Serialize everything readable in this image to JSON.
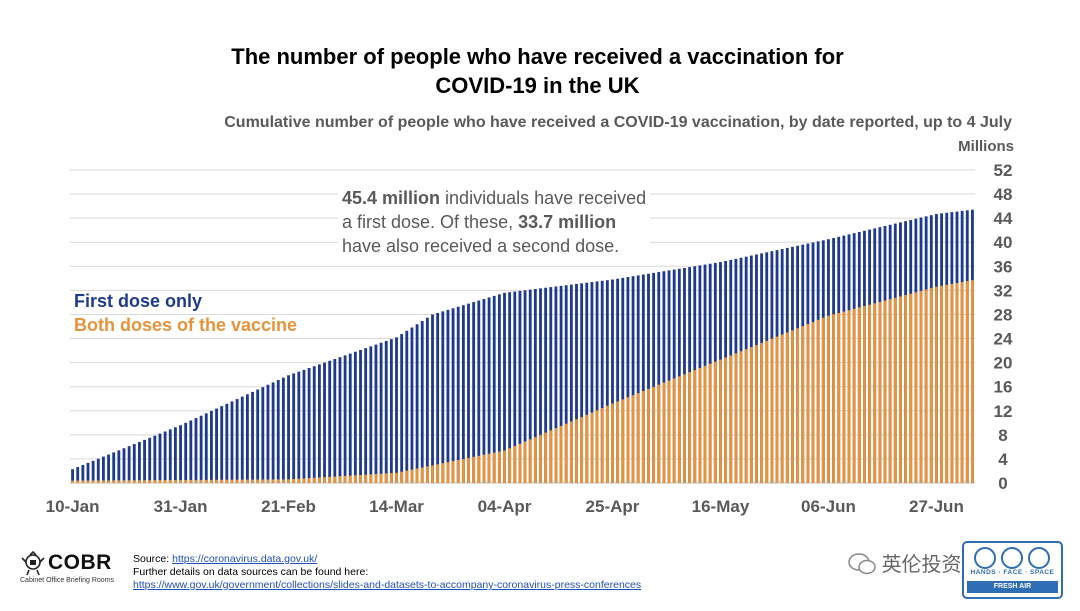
{
  "title_line1": "The number of people who have received a vaccination for",
  "title_line2": "COVID-19 in the UK",
  "subtitle": "Cumulative number of people who have received a COVID-19 vaccination, by date reported, up to 4 July",
  "units": "Millions",
  "annotation": {
    "first_value": "45.4 million",
    "part1": " individuals have received",
    "part2": "a first dose. Of these, ",
    "second_value": "33.7 million",
    "part3": "have also received a second dose."
  },
  "legend": {
    "first": "First dose only",
    "both": "Both doses of the vaccine"
  },
  "colors": {
    "first_dose": "#1f3a8c",
    "both_doses": "#e8923a",
    "grid": "#d9d9d9",
    "axis_text": "#595959"
  },
  "source": {
    "label": "Source: ",
    "link": "https://coronavirus.data.gov.uk/",
    "further": "Further details on data sources can be found here:",
    "link2": "https://www.gov.uk/government/collections/slides-and-datasets-to-accompany-coronavirus-press-conferences"
  },
  "logo": {
    "name": "COBR",
    "sub": "Cabinet Office Briefing Rooms",
    "icon": "crest-icon"
  },
  "watermark": "英伦投资客",
  "badge": {
    "words": "HANDS · FACE · SPACE",
    "bar": "FRESH AIR"
  },
  "chart_data": {
    "type": "bar",
    "stacked": true,
    "x_ticks": [
      "10-Jan",
      "31-Jan",
      "21-Feb",
      "14-Mar",
      "04-Apr",
      "25-Apr",
      "16-May",
      "06-Jun",
      "27-Jun"
    ],
    "y_ticks": [
      0,
      4,
      8,
      12,
      16,
      20,
      24,
      28,
      32,
      36,
      40,
      44,
      48,
      52
    ],
    "ylim": [
      0,
      52
    ],
    "y_axis_position": "right",
    "grid": true,
    "legend_placement": "left-middle",
    "start_date": "10-Jan",
    "end_date": "04-Jul",
    "series": [
      {
        "name": "First dose only",
        "anchors": [
          [
            "10-Jan",
            2.3
          ],
          [
            "31-Jan",
            9.6
          ],
          [
            "21-Feb",
            17.9
          ],
          [
            "14-Mar",
            24.2
          ],
          [
            "21-Mar",
            28.0
          ],
          [
            "04-Apr",
            31.6
          ],
          [
            "25-Apr",
            33.8
          ],
          [
            "16-May",
            36.7
          ],
          [
            "06-Jun",
            40.5
          ],
          [
            "27-Jun",
            44.7
          ],
          [
            "04-Jul",
            45.4
          ]
        ]
      },
      {
        "name": "Both doses of the vaccine",
        "anchors": [
          [
            "10-Jan",
            0.4
          ],
          [
            "31-Jan",
            0.5
          ],
          [
            "21-Feb",
            0.6
          ],
          [
            "14-Mar",
            1.7
          ],
          [
            "04-Apr",
            5.4
          ],
          [
            "25-Apr",
            13.2
          ],
          [
            "16-May",
            20.5
          ],
          [
            "06-Jun",
            27.8
          ],
          [
            "27-Jun",
            32.6
          ],
          [
            "04-Jul",
            33.7
          ]
        ]
      }
    ],
    "annotated_totals": {
      "first_dose": 45.4,
      "second_dose": 33.7
    }
  }
}
